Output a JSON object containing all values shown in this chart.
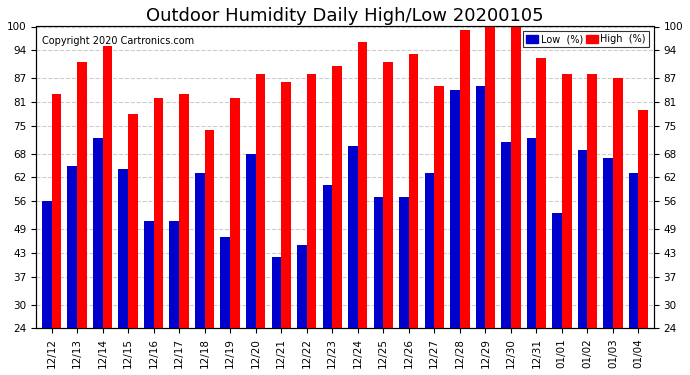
{
  "title": "Outdoor Humidity Daily High/Low 20200105",
  "copyright": "Copyright 2020 Cartronics.com",
  "categories": [
    "12/12",
    "12/13",
    "12/14",
    "12/15",
    "12/16",
    "12/17",
    "12/18",
    "12/19",
    "12/20",
    "12/21",
    "12/22",
    "12/23",
    "12/24",
    "12/25",
    "12/26",
    "12/27",
    "12/28",
    "12/29",
    "12/30",
    "12/31",
    "01/01",
    "01/02",
    "01/03",
    "01/04"
  ],
  "high_values": [
    83,
    91,
    95,
    78,
    82,
    83,
    74,
    82,
    88,
    86,
    88,
    90,
    96,
    91,
    93,
    85,
    99,
    100,
    100,
    92,
    88,
    88,
    87,
    79
  ],
  "low_values": [
    56,
    65,
    72,
    64,
    51,
    51,
    63,
    47,
    68,
    42,
    45,
    60,
    70,
    57,
    57,
    63,
    84,
    85,
    71,
    72,
    53,
    69,
    67,
    63
  ],
  "high_color": "#FF0000",
  "low_color": "#0000CC",
  "ylim_min": 24,
  "ylim_max": 100,
  "yticks": [
    24,
    30,
    37,
    43,
    49,
    56,
    62,
    68,
    75,
    81,
    87,
    94,
    100
  ],
  "bar_width": 0.38,
  "background_color": "#FFFFFF",
  "grid_color": "#CCCCCC",
  "title_fontsize": 13,
  "tick_fontsize": 7.5,
  "copyright_fontsize": 7,
  "copyright_color": "#000000",
  "legend_label_low": "Low  (%)",
  "legend_label_high": "High  (%)"
}
